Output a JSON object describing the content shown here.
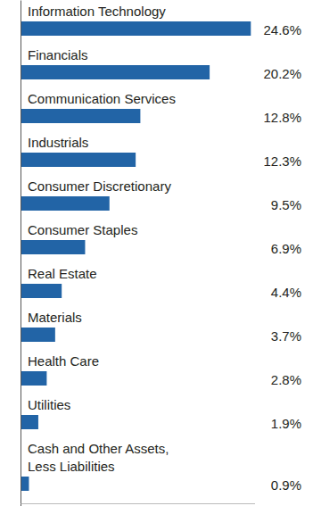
{
  "chart_data": {
    "type": "bar",
    "orientation": "horizontal",
    "categories": [
      "Information Technology",
      "Financials",
      "Communication Services",
      "Industrials",
      "Consumer Discretionary",
      "Consumer Staples",
      "Real Estate",
      "Materials",
      "Health Care",
      "Utilities",
      "Cash and Other Assets, Less Liabilities"
    ],
    "values": [
      24.6,
      20.2,
      12.8,
      12.3,
      9.5,
      6.9,
      4.4,
      3.7,
      2.8,
      1.9,
      0.9
    ],
    "value_labels": [
      "24.6%",
      "20.2%",
      "12.8%",
      "12.3%",
      "9.5%",
      "6.9%",
      "4.4%",
      "3.7%",
      "2.8%",
      "1.9%",
      "0.9%"
    ],
    "color": "#2264a6",
    "xlim": [
      0,
      25
    ],
    "data_labels": true
  }
}
